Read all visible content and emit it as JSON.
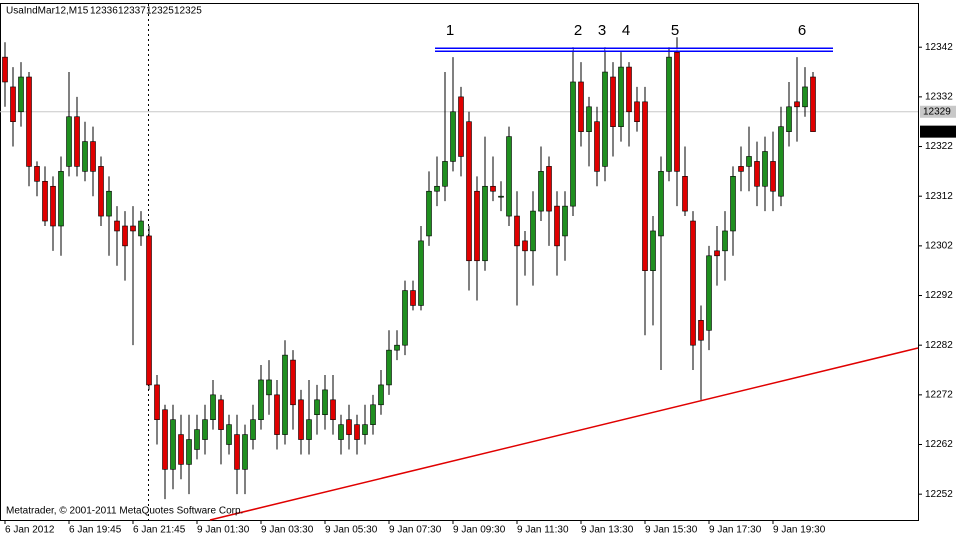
{
  "chart_data": {
    "type": "candlestick",
    "title": "UsaIndMar12,M15",
    "footer": "Metatrader, © 2001-2011 MetaQuotes Software Corp.",
    "categories": [
      "6 Jan 2012",
      null,
      null,
      null,
      null,
      null,
      null,
      null,
      "6 Jan 19:45",
      null,
      null,
      null,
      null,
      null,
      null,
      null,
      "6 Jan 21:45",
      null,
      null,
      null,
      null,
      null,
      null,
      null,
      "9 Jan 01:30",
      null,
      null,
      null,
      null,
      null,
      null,
      null,
      "9 Jan 03:30",
      null,
      null,
      null,
      null,
      null,
      null,
      null,
      "9 Jan 05:30",
      null,
      null,
      null,
      null,
      null,
      null,
      null,
      "9 Jan 07:30",
      null,
      null,
      null,
      null,
      null,
      null,
      null,
      "9 Jan 09:30",
      null,
      null,
      null,
      null,
      null,
      null,
      null,
      "9 Jan 11:30",
      null,
      null,
      null,
      null,
      null,
      null,
      null,
      "9 Jan 13:30",
      null,
      null,
      null,
      null,
      null,
      null,
      null,
      "9 Jan 15:30",
      null,
      null,
      null,
      null,
      null,
      null,
      null,
      "9 Jan 17:30",
      null,
      null,
      null,
      null,
      null,
      null,
      null,
      "9 Jan 19:30",
      null,
      null,
      null,
      null,
      null
    ],
    "open": [
      12340,
      12334,
      12329,
      12336,
      12318,
      12315,
      12314,
      12306,
      12318,
      12328,
      12317,
      12323,
      12318,
      12308,
      12307,
      12306,
      12306,
      12304,
      12304,
      12274,
      12269,
      12257,
      12264,
      12258,
      12261,
      12263,
      12267,
      12271,
      12262,
      12264,
      12257,
      12263,
      12267,
      12272,
      12272,
      12264,
      12279,
      12271,
      12263,
      12268,
      12268,
      12271,
      12263,
      12267,
      12266,
      12264,
      12266,
      12270,
      12274,
      12281,
      12282,
      12293,
      12290,
      12304,
      12313,
      12314,
      12319,
      12332,
      12327,
      12313,
      12299,
      12314,
      12312,
      12308,
      12308,
      12303,
      12301,
      12309,
      12318,
      12310,
      12304,
      12310,
      12335,
      12325,
      12327,
      12318,
      12336,
      12326,
      12338,
      12331,
      12331,
      12297,
      12304,
      12317,
      12341,
      12316,
      12307,
      12287,
      12285,
      12301,
      12301,
      12305,
      12318,
      12318,
      12319,
      12314,
      12319,
      12312,
      12325,
      12331,
      12330,
      12336
    ],
    "high": [
      12343,
      12338,
      12339,
      12337,
      12319,
      12318,
      12316,
      12320,
      12337,
      12332,
      12327,
      12326,
      12320,
      12316,
      12310,
      12309,
      12310,
      12309,
      12306,
      12276,
      12270,
      12270,
      12268,
      12268,
      12268,
      12270,
      12275,
      12272,
      12268,
      12268,
      12266,
      12270,
      12278,
      12279,
      12275,
      12283,
      12281,
      12273,
      12275,
      12274,
      12276,
      12276,
      12268,
      12270,
      12268,
      12270,
      12272,
      12277,
      12285,
      12285,
      12295,
      12295,
      12306,
      12317,
      12320,
      12337,
      12340,
      12334,
      12329,
      12316,
      12324,
      12320,
      12315,
      12326,
      12313,
      12305,
      12313,
      12322,
      12320,
      12313,
      12313,
      12342,
      12339,
      12332,
      12330,
      12342,
      12339,
      12341,
      12339,
      12334,
      12334,
      12308,
      12320,
      12342,
      12344,
      12322,
      12309,
      12290,
      12302,
      12306,
      12309,
      12318,
      12322,
      12326,
      12323,
      12324,
      12325,
      12330,
      12335,
      12340,
      12338,
      12337
    ],
    "low": [
      12330,
      12322,
      12326,
      12314,
      12312,
      12306,
      12301,
      12300,
      12316,
      12316,
      12315,
      12312,
      12306,
      12300,
      12298,
      12295,
      12282,
      12302,
      12273,
      12262,
      12251,
      12253,
      12255,
      12252,
      12259,
      12260,
      12265,
      12258,
      12260,
      12252,
      12252,
      12261,
      12265,
      12268,
      12261,
      12262,
      12265,
      12260,
      12260,
      12264,
      12265,
      12264,
      12260,
      12261,
      12260,
      12262,
      12264,
      12268,
      12272,
      12279,
      12280,
      12289,
      12289,
      12302,
      12310,
      12311,
      12317,
      12316,
      12293,
      12291,
      12297,
      12311,
      12309,
      12306,
      12290,
      12296,
      12294,
      12307,
      12302,
      12296,
      12299,
      12308,
      12322,
      12318,
      12314,
      12315,
      12320,
      12323,
      12322,
      12325,
      12284,
      12286,
      12277,
      12315,
      12310,
      12308,
      12277,
      12271,
      12281,
      12294,
      12295,
      12300,
      12313,
      12313,
      12310,
      12309,
      12309,
      12310,
      12322,
      12323,
      12328,
      12325
    ],
    "close": [
      12335,
      12327,
      12336,
      12318,
      12315,
      12307,
      12306,
      12317,
      12328,
      12318,
      12323,
      12317,
      12308,
      12313,
      12305,
      12302,
      12305,
      12307,
      12274,
      12267,
      12257,
      12267,
      12258,
      12263,
      12265,
      12267,
      12272,
      12265,
      12266,
      12257,
      12264,
      12267,
      12275,
      12275,
      12264,
      12280,
      12270,
      12263,
      12267,
      12271,
      12273,
      12267,
      12266,
      12264,
      12263,
      12266,
      12270,
      12274,
      12281,
      12282,
      12293,
      12290,
      12303,
      12313,
      12314,
      12319,
      12329,
      12320,
      12299,
      12299,
      12314,
      12313,
      12312,
      12324,
      12302,
      12301,
      12309,
      12317,
      12309,
      12302,
      12310,
      12335,
      12325,
      12330,
      12317,
      12337,
      12326,
      12338,
      12329,
      12327,
      12297,
      12305,
      12317,
      12340,
      12317,
      12309,
      12282,
      12283,
      12300,
      12300,
      12305,
      12316,
      12317,
      12320,
      12314,
      12321,
      12313,
      12326,
      12330,
      12330,
      12334,
      12325
    ],
    "up_color": "#1f8f1f",
    "down_color": "#e00000",
    "ask": 12329,
    "resistance": 12341.5,
    "annotations": [
      "1",
      "2",
      "3",
      "4",
      "5",
      "6"
    ],
    "ylim": [
      12246.8,
      12350.7
    ],
    "yticks": [
      12252,
      12262,
      12272,
      12282,
      12292,
      12302,
      12312,
      12322,
      12332,
      12342
    ]
  }
}
